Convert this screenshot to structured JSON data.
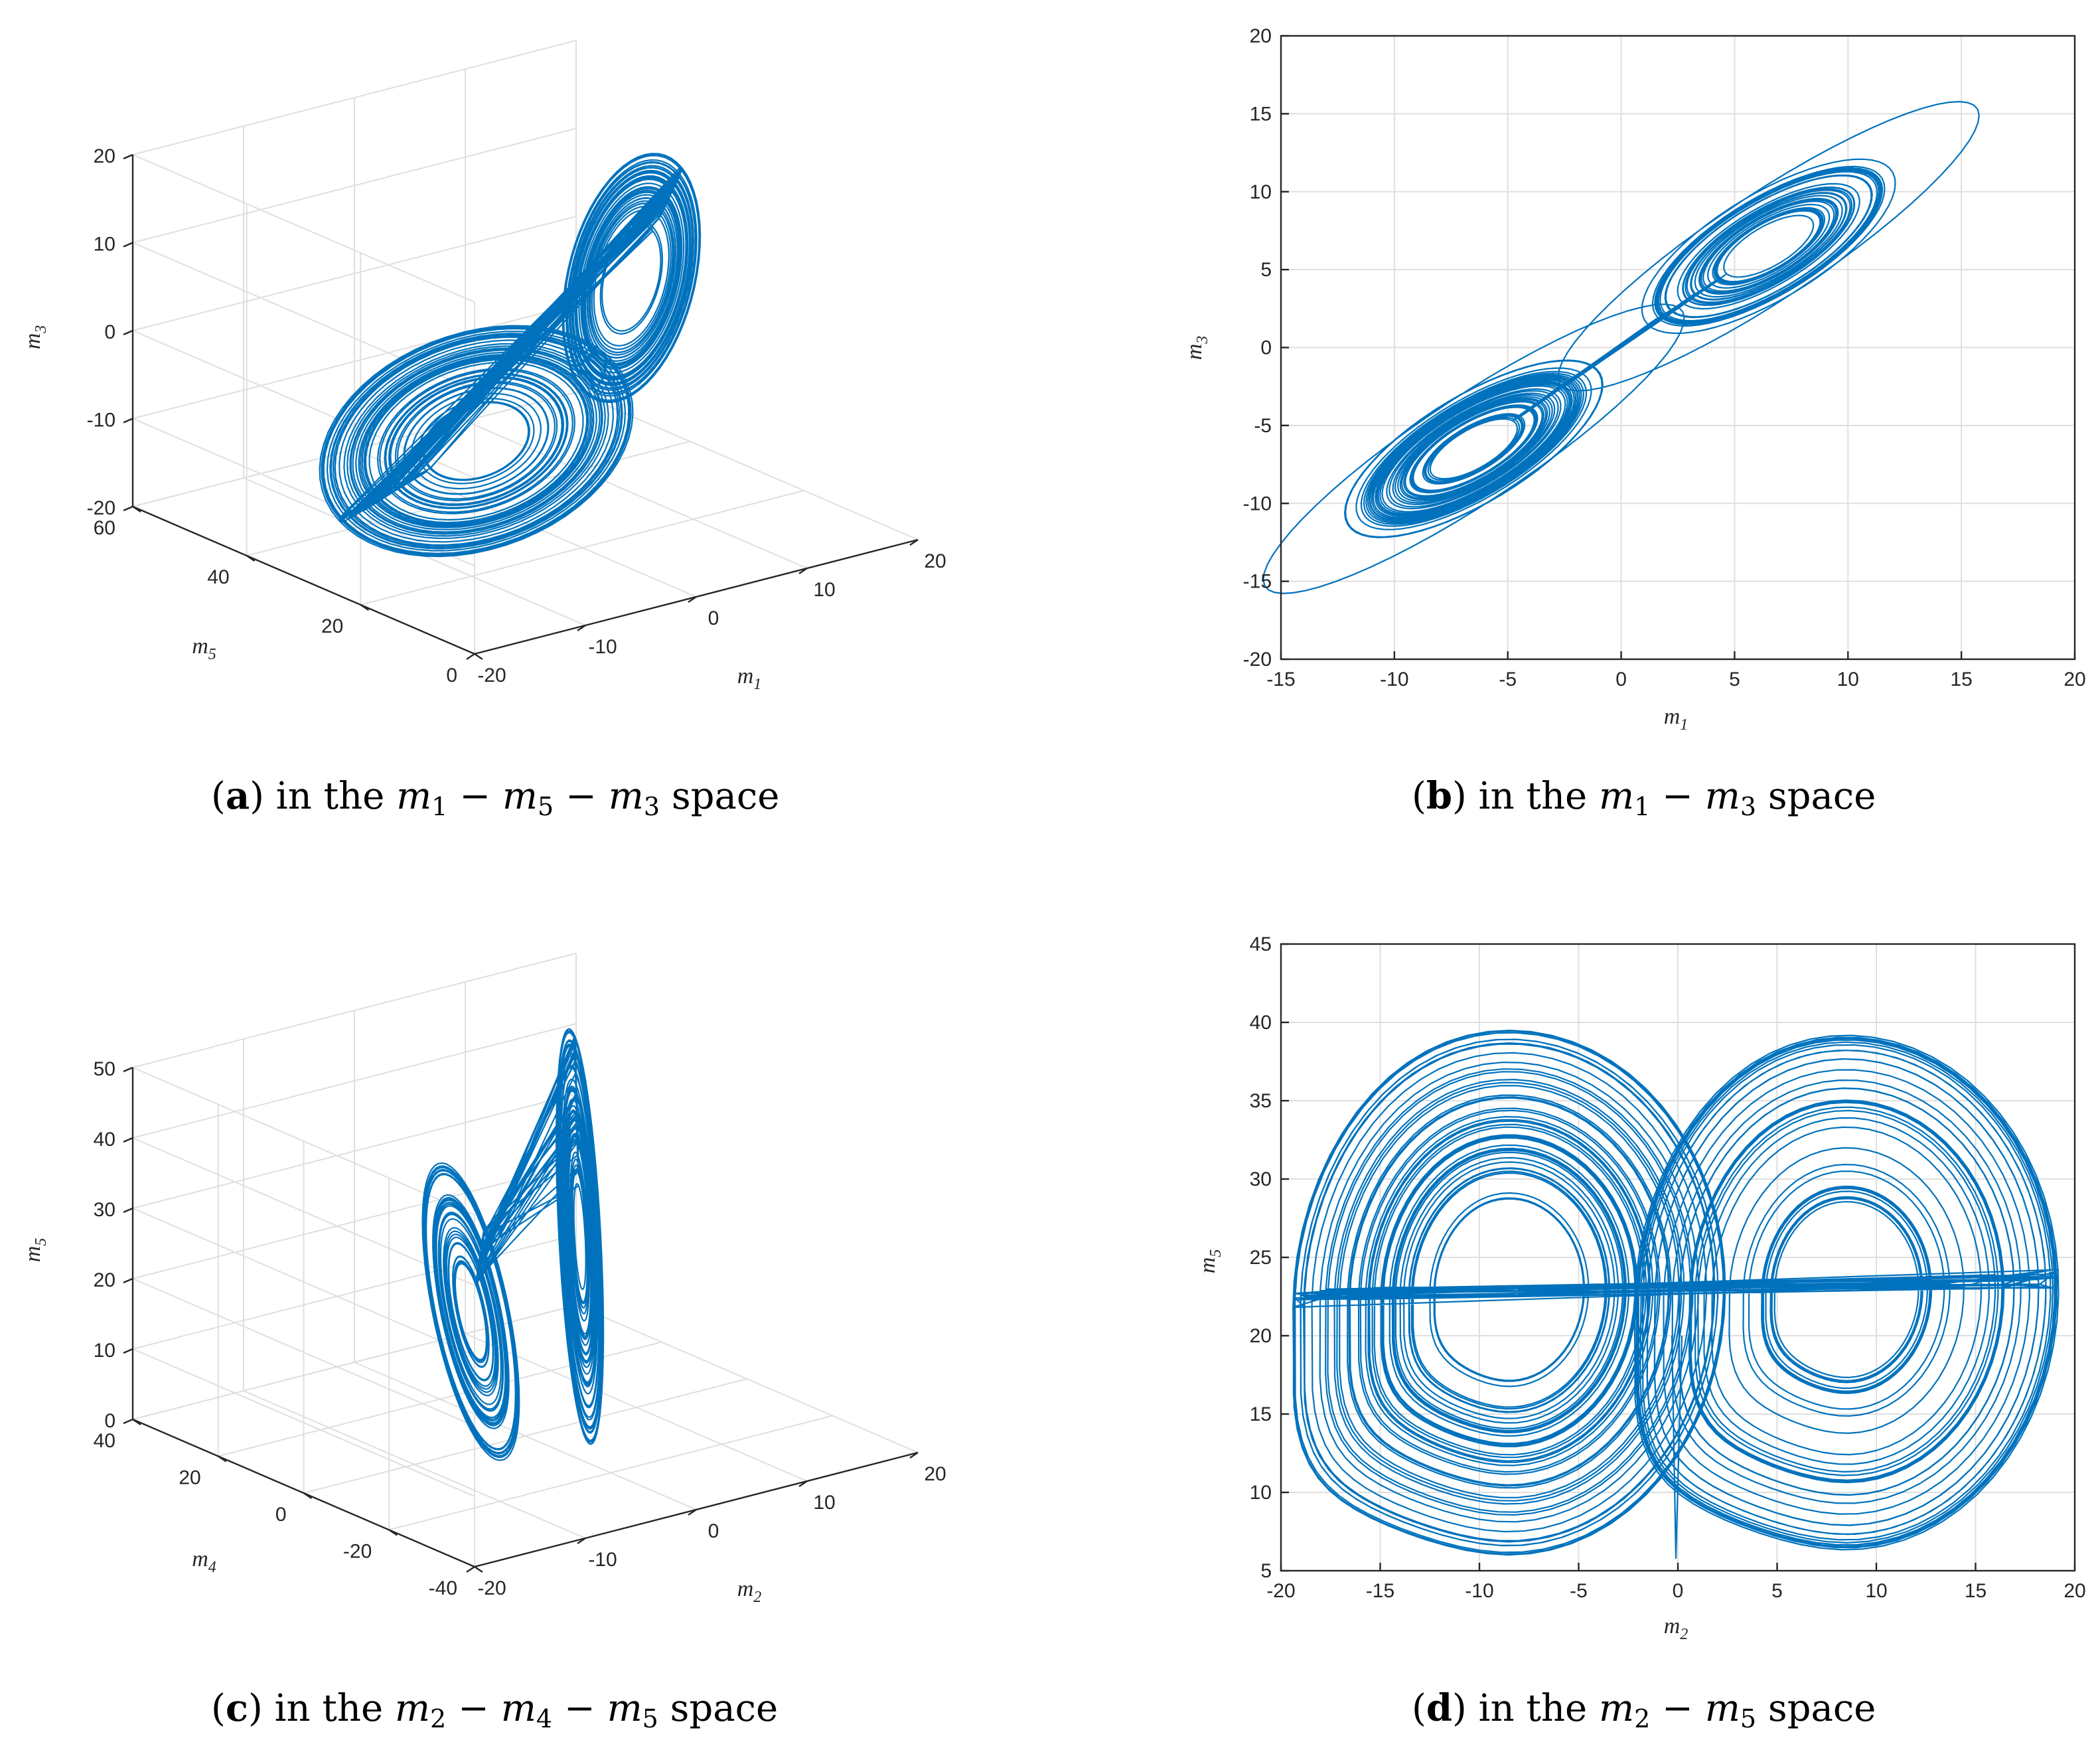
{
  "figure": {
    "curve_color": "#0072BD",
    "grid_color": "#dfdfdf",
    "axis_color": "#262626"
  },
  "panels": {
    "a": {
      "caption": {
        "letter": "a",
        "prefix": "in the",
        "terms": [
          {
            "var": "m",
            "sub": "1"
          },
          {
            "var": "m",
            "sub": "5"
          },
          {
            "var": "m",
            "sub": "3"
          }
        ],
        "suffix": "space",
        "open": "(",
        "close": ")",
        "minus": "−"
      }
    },
    "b": {
      "caption": {
        "letter": "b",
        "prefix": "in the",
        "terms": [
          {
            "var": "m",
            "sub": "1"
          },
          {
            "var": "m",
            "sub": "3"
          }
        ],
        "suffix": "space",
        "open": "(",
        "close": ")",
        "minus": "−"
      }
    },
    "c": {
      "caption": {
        "letter": "c",
        "prefix": "in the",
        "terms": [
          {
            "var": "m",
            "sub": "2"
          },
          {
            "var": "m",
            "sub": "4"
          },
          {
            "var": "m",
            "sub": "5"
          }
        ],
        "suffix": "space",
        "open": "(",
        "close": ")",
        "minus": "−"
      }
    },
    "d": {
      "caption": {
        "letter": "d",
        "prefix": "in the",
        "terms": [
          {
            "var": "m",
            "sub": "2"
          },
          {
            "var": "m",
            "sub": "5"
          }
        ],
        "suffix": "space",
        "open": "(",
        "close": ")",
        "minus": "−"
      }
    }
  },
  "chart_data": [
    {
      "id": "a",
      "type": "line",
      "projection": "3d",
      "title": "in the m1 − m5 − m3 space",
      "xlabel": {
        "var": "m",
        "sub": "1"
      },
      "ylabel": {
        "var": "m",
        "sub": "5"
      },
      "zlabel": {
        "var": "m",
        "sub": "3"
      },
      "xlim": [
        -20,
        20
      ],
      "ylim": [
        0,
        60
      ],
      "zlim": [
        -20,
        20
      ],
      "xticks": [
        -20,
        -10,
        0,
        10,
        20
      ],
      "yticks": [
        0,
        20,
        40,
        60
      ],
      "zticks": [
        -20,
        -10,
        0,
        10,
        20
      ],
      "grid": true,
      "series": [
        {
          "name": "trajectory",
          "description": "Lorenz-type chaotic attractor with two lobes",
          "lobe_centers_m1_m5_m3": [
            [
              -7,
              25,
              -7
            ],
            [
              7,
              25,
              7
            ]
          ]
        }
      ]
    },
    {
      "id": "b",
      "type": "line",
      "title": "in the m1 − m3 space",
      "xlabel": {
        "var": "m",
        "sub": "1"
      },
      "ylabel": {
        "var": "m",
        "sub": "3"
      },
      "xlim": [
        -15,
        20
      ],
      "ylim": [
        -20,
        20
      ],
      "xticks": [
        -15,
        -10,
        -5,
        0,
        5,
        10,
        15,
        20
      ],
      "yticks": [
        -20,
        -15,
        -10,
        -5,
        0,
        5,
        10,
        15,
        20
      ],
      "grid": true,
      "series": [
        {
          "name": "trajectory",
          "lobe_centers": [
            [
              -6.5,
              -6.5
            ],
            [
              6.5,
              6.5
            ]
          ],
          "extent_x": [
            -14,
            15
          ],
          "extent_y": [
            -16,
            16.5
          ]
        }
      ]
    },
    {
      "id": "c",
      "type": "line",
      "projection": "3d",
      "title": "in the m2 − m4 − m5 space",
      "xlabel": {
        "var": "m",
        "sub": "2"
      },
      "ylabel": {
        "var": "m",
        "sub": "4"
      },
      "zlabel": {
        "var": "m",
        "sub": "5"
      },
      "xlim": [
        -20,
        20
      ],
      "ylim": [
        -40,
        40
      ],
      "zlim": [
        0,
        50
      ],
      "xticks": [
        -20,
        -10,
        0,
        10,
        20
      ],
      "yticks": [
        -40,
        -20,
        0,
        20,
        40
      ],
      "zticks": [
        0,
        10,
        20,
        30,
        40,
        50
      ],
      "grid": true,
      "series": [
        {
          "name": "trajectory",
          "description": "attractor folded into a spike towards positive m2"
        }
      ]
    },
    {
      "id": "d",
      "type": "line",
      "title": "in the m2 − m5 space",
      "xlabel": {
        "var": "m",
        "sub": "2"
      },
      "ylabel": {
        "var": "m",
        "sub": "5"
      },
      "xlim": [
        -20,
        20
      ],
      "ylim": [
        5,
        45
      ],
      "xticks": [
        -20,
        -15,
        -10,
        -5,
        0,
        5,
        10,
        15,
        20
      ],
      "yticks": [
        5,
        10,
        15,
        20,
        25,
        30,
        35,
        40,
        45
      ],
      "grid": true,
      "series": [
        {
          "name": "trajectory",
          "lobe_centers": [
            [
              -8.5,
              23
            ],
            [
              8.5,
              23
            ]
          ],
          "extent_x": [
            -19.5,
            19
          ],
          "extent_y": [
            5,
            40
          ]
        }
      ]
    }
  ]
}
